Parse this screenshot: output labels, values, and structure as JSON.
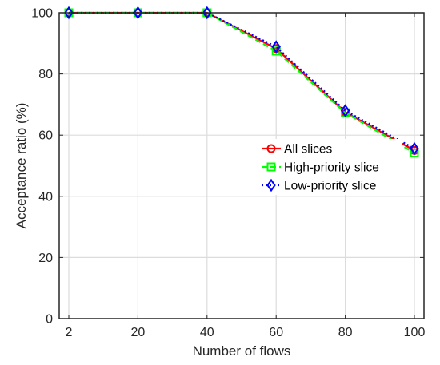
{
  "chart_data": {
    "type": "line",
    "xlabel": "Number of flows",
    "ylabel": "Acceptance ratio (%)",
    "x": [
      2,
      20,
      40,
      60,
      80,
      100
    ],
    "x_tick_labels": [
      "2",
      "20",
      "40",
      "60",
      "80",
      "100"
    ],
    "ylim": [
      0,
      100
    ],
    "y_ticks": [
      0,
      20,
      40,
      60,
      80,
      100
    ],
    "y_tick_labels": [
      "0",
      "20",
      "40",
      "60",
      "80",
      "100"
    ],
    "grid": true,
    "legend_position": "right-middle",
    "series": [
      {
        "name": "All slices",
        "values": [
          100,
          100,
          100,
          88.3,
          67.5,
          55.0
        ],
        "color": "#ff0000",
        "marker": "circle",
        "line_style": "solid"
      },
      {
        "name": "High-priority slice",
        "values": [
          100,
          100,
          100,
          87.5,
          67.3,
          54.2
        ],
        "color": "#00ff00",
        "marker": "square",
        "line_style": "dashed"
      },
      {
        "name": "Low-priority slice",
        "values": [
          100,
          100,
          100,
          88.9,
          68.0,
          55.6
        ],
        "color": "#0000ff",
        "marker": "diamond",
        "line_style": "dotted"
      }
    ]
  }
}
